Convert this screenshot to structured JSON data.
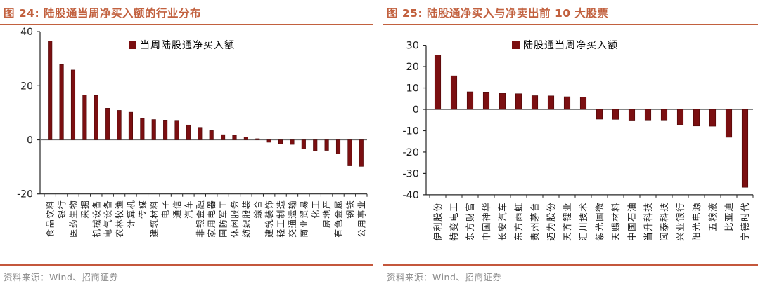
{
  "colors": {
    "accent": "#C2613F",
    "footer_rule": "#C4573C",
    "bar": "#7B0F11",
    "bar_border": "#4A0607",
    "axis": "#262626",
    "zero_line_left": "#6F6F6F",
    "zero_line_right": "#3C3C3C",
    "tick_text": "#1A1A1A",
    "source_text": "#8A8A8A"
  },
  "figures": [
    {
      "title": "图 24:  陆股通当周净买入额的行业分布",
      "legend": "当周陆股通净买入额",
      "source": "资料来源：Wind、招商证券",
      "chart_data": {
        "type": "bar",
        "title": "陆股通当周净买入额的行业分布",
        "legend": [
          "当周陆股通净买入额"
        ],
        "xlabel": "",
        "ylabel": "",
        "ylim": [
          -20,
          40
        ],
        "yticks": [
          40,
          20,
          0,
          -20
        ],
        "grid": false,
        "legend_position": "top-center",
        "categories": [
          "食品饮料",
          "银行",
          "医药生物",
          "采掘",
          "机械设备",
          "电气设备",
          "农林牧渔",
          "计算机",
          "传媒",
          "建筑材料",
          "电子",
          "通信",
          "汽车",
          "非银金融",
          "家用电器",
          "国防军工",
          "休闲服务",
          "纺织服装",
          "综合",
          "建筑装饰",
          "轻工制造",
          "交通运输",
          "商业贸易",
          "化工",
          "房地产",
          "有色金属",
          "钢铁",
          "公用事业"
        ],
        "values": [
          36.5,
          27.8,
          25.8,
          16.6,
          16.4,
          11.7,
          10.9,
          10.2,
          7.9,
          7.5,
          7.3,
          7.2,
          5.5,
          4.6,
          3.4,
          1.9,
          1.7,
          1.0,
          0.4,
          -0.9,
          -1.5,
          -1.7,
          -3.4,
          -4.0,
          -3.9,
          -5.2,
          -9.6,
          -9.8
        ]
      }
    },
    {
      "title": "图 25:  陆股通净买入与净卖出前 10 大股票",
      "legend": "陆股通当周净买入额",
      "source": "资料来源：Wind、招商证券",
      "chart_data": {
        "type": "bar",
        "title": "陆股通净买入与净卖出前 10 大股票",
        "legend": [
          "陆股通当周净买入额"
        ],
        "xlabel": "",
        "ylabel": "",
        "ylim": [
          -40,
          30
        ],
        "yticks": [
          30,
          20,
          10,
          0,
          -10,
          -20,
          -30,
          -40
        ],
        "grid": false,
        "legend_position": "top-center",
        "categories": [
          "伊利股份",
          "特变电工",
          "东方财富",
          "中国神华",
          "长安汽车",
          "东方雨虹",
          "贵州茅台",
          "迈为股份",
          "天齐锂业",
          "汇川技术",
          "紫光国微",
          "天赐材料",
          "中国石油",
          "当升科技",
          "闻泰科技",
          "兴业银行",
          "阳光电源",
          "五粮液",
          "比亚迪",
          "宁德时代"
        ],
        "values": [
          25.5,
          15.7,
          8.2,
          8.1,
          7.5,
          7.3,
          6.4,
          6.3,
          5.9,
          5.8,
          -4.6,
          -4.7,
          -5.1,
          -5.0,
          -5.0,
          -7.2,
          -7.8,
          -7.9,
          -13.1,
          -36.5
        ]
      }
    }
  ]
}
